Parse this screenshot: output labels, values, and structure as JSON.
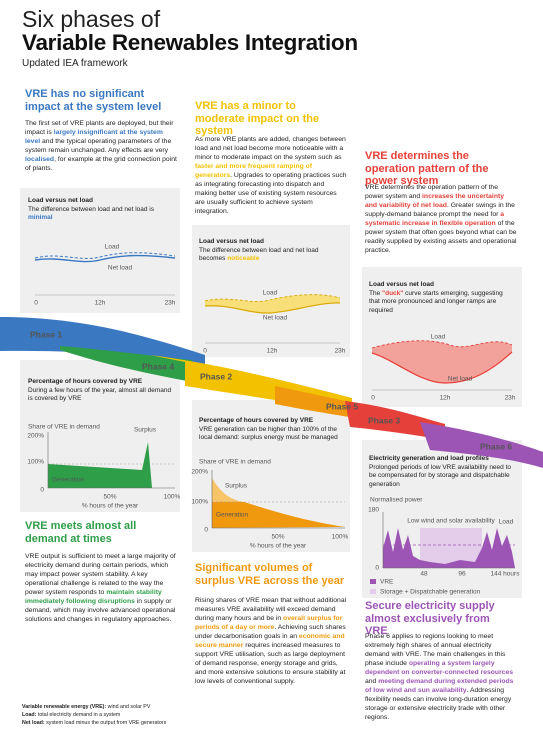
{
  "header": {
    "title_line1": "Six phases of",
    "title_line2": "Variable Renewables Integration",
    "subtitle": "Updated IEA framework"
  },
  "phases": [
    {
      "label": "Phase 1",
      "color": "#3a78c2",
      "heading": "VRE has no significant impact at the system level",
      "body": [
        "The first set of VRE plants are deployed, but their impact is ",
        {
          "text": "largely insignificant at the system level"
        },
        " and the typical operating parameters of the system remain unchanged. Any effects are very ",
        {
          "text": "localised"
        },
        ", for example at the grid connection point of plants."
      ],
      "panel": {
        "title": "Load versus net load",
        "description": [
          "The difference between load and net load is ",
          {
            "text": "minimal"
          }
        ],
        "labels": [
          "Load",
          "Net load",
          "0",
          "12h",
          "23h"
        ]
      }
    },
    {
      "label": "Phase 2",
      "color": "#f2c200",
      "heading": "VRE has a minor to moderate impact on the system",
      "body": [
        "As more VRE plants are added, changes between load and net load become more noticeable with a minor to moderate impact on the system such as ",
        {
          "text": "faster and more frequent ramping of generators"
        },
        ". Upgrades to operating practices such as integrating forecasting into dispatch and making better use of existing system resources are usually sufficient to achieve system integration."
      ],
      "panel": {
        "title": "Load versus net load",
        "description": [
          "The difference between load and net load becomes ",
          {
            "text": "noticeable"
          }
        ],
        "labels": [
          "Load",
          "Net load",
          "0",
          "12h",
          "23h"
        ]
      }
    },
    {
      "label": "Phase 3",
      "color": "#e5413a",
      "heading": "VRE determines the operation pattern of the power system",
      "body": [
        "VRE determines the operation pattern of the power system and ",
        {
          "text": "increases the uncertainty and variability of net load"
        },
        ". Greater swings in the supply-demand balance prompt the need for ",
        {
          "text": "a systematic increase in flexible operation"
        },
        " of the power system that often goes beyond what can be readily supplied by existing assets and operational practice."
      ],
      "panel": {
        "title": "Load versus net load",
        "description": [
          "The ",
          {
            "text": "\"duck\""
          },
          " curve starts emerging, suggesting that more pronounced and longer ramps are required"
        ],
        "labels": [
          "Load",
          "Net load",
          "0",
          "12h",
          "23h"
        ]
      }
    },
    {
      "label": "Phase 4",
      "color": "#2e9e49",
      "heading": "VRE meets almost all demand at times",
      "body": [
        "VRE output is sufficient to meet a large majority of electricity demand during certain periods, which may impact power system stability. A key operational challenge is related to the way the power system responds to ",
        {
          "text": "maintain stability immediately following disruptions"
        },
        " in supply or demand, which may involve advanced operational solutions and changes in regulatory approaches."
      ],
      "panel": {
        "title": "Percentage of hours covered by VRE",
        "description": [
          "During a few hours of the year, almost all demand is covered by VRE"
        ],
        "labels": [
          "Share of VRE in demand",
          "200%",
          "100%",
          "0",
          "50%",
          "100%",
          "% hours of the year",
          "Surplus",
          "Generation"
        ]
      }
    },
    {
      "label": "Phase 5",
      "color": "#f0990f",
      "heading": "Significant volumes of surplus VRE across the year",
      "body": [
        "Rising shares of VRE mean that without additional measures VRE availability will exceed demand during many hours and be in ",
        {
          "text": "overall surplus for periods of a day or more"
        },
        ". Achieving such shares under decarbonisation goals in an ",
        {
          "text": "economic and secure manner"
        },
        " requires increased measures to support VRE utilisation, such as large deployment of demand response, energy storage and grids, and more extensive solutions to ensure stability at low levels of conventional supply."
      ],
      "panel": {
        "title": "Percentage of hours covered by VRE",
        "description": [
          "VRE generation can be higher than 100% of the local demand: surplus energy must be managed"
        ],
        "labels": [
          "Share of VRE in demand",
          "200%",
          "100%",
          "0",
          "50%",
          "100%",
          "% hours of the year",
          "Surplus",
          "Generation"
        ]
      }
    },
    {
      "label": "Phase 6",
      "color": "#9c55b5",
      "heading": "Secure electricity supply almost exclusively from VRE",
      "body": [
        "Phase 6 applies to regions looking to meet extremely high shares of annual electricity demand with VRE. The main challenges in this phase include ",
        {
          "text": "operating a system largely dependent on converter-connected resources"
        },
        " and ",
        {
          "text": "meeting demand during extended periods of low wind and sun availability"
        },
        ". Addressing flexibility needs can involve long-duration energy storage or extensive electricity trade with other regions."
      ],
      "panel": {
        "title": "Electricity generation and load profiles",
        "description": [
          "Prolonged periods of low VRE availability need to be compensated for by storage and dispatchable generation"
        ],
        "labels": [
          "Normalised power",
          "180",
          "0",
          "48",
          "96",
          "144 hours",
          "Low wind and solar availability",
          "Load",
          "VRE",
          "Storage + Dispatchable generation"
        ]
      }
    }
  ],
  "footnotes": [
    {
      "term": "Variable renewable energy (VRE):",
      "text": " wind and solar PV"
    },
    {
      "term": "Load:",
      "text": " total electricity demand in a system"
    },
    {
      "term": "Net load:",
      "text": " system load minus the output from VRE generators"
    }
  ]
}
